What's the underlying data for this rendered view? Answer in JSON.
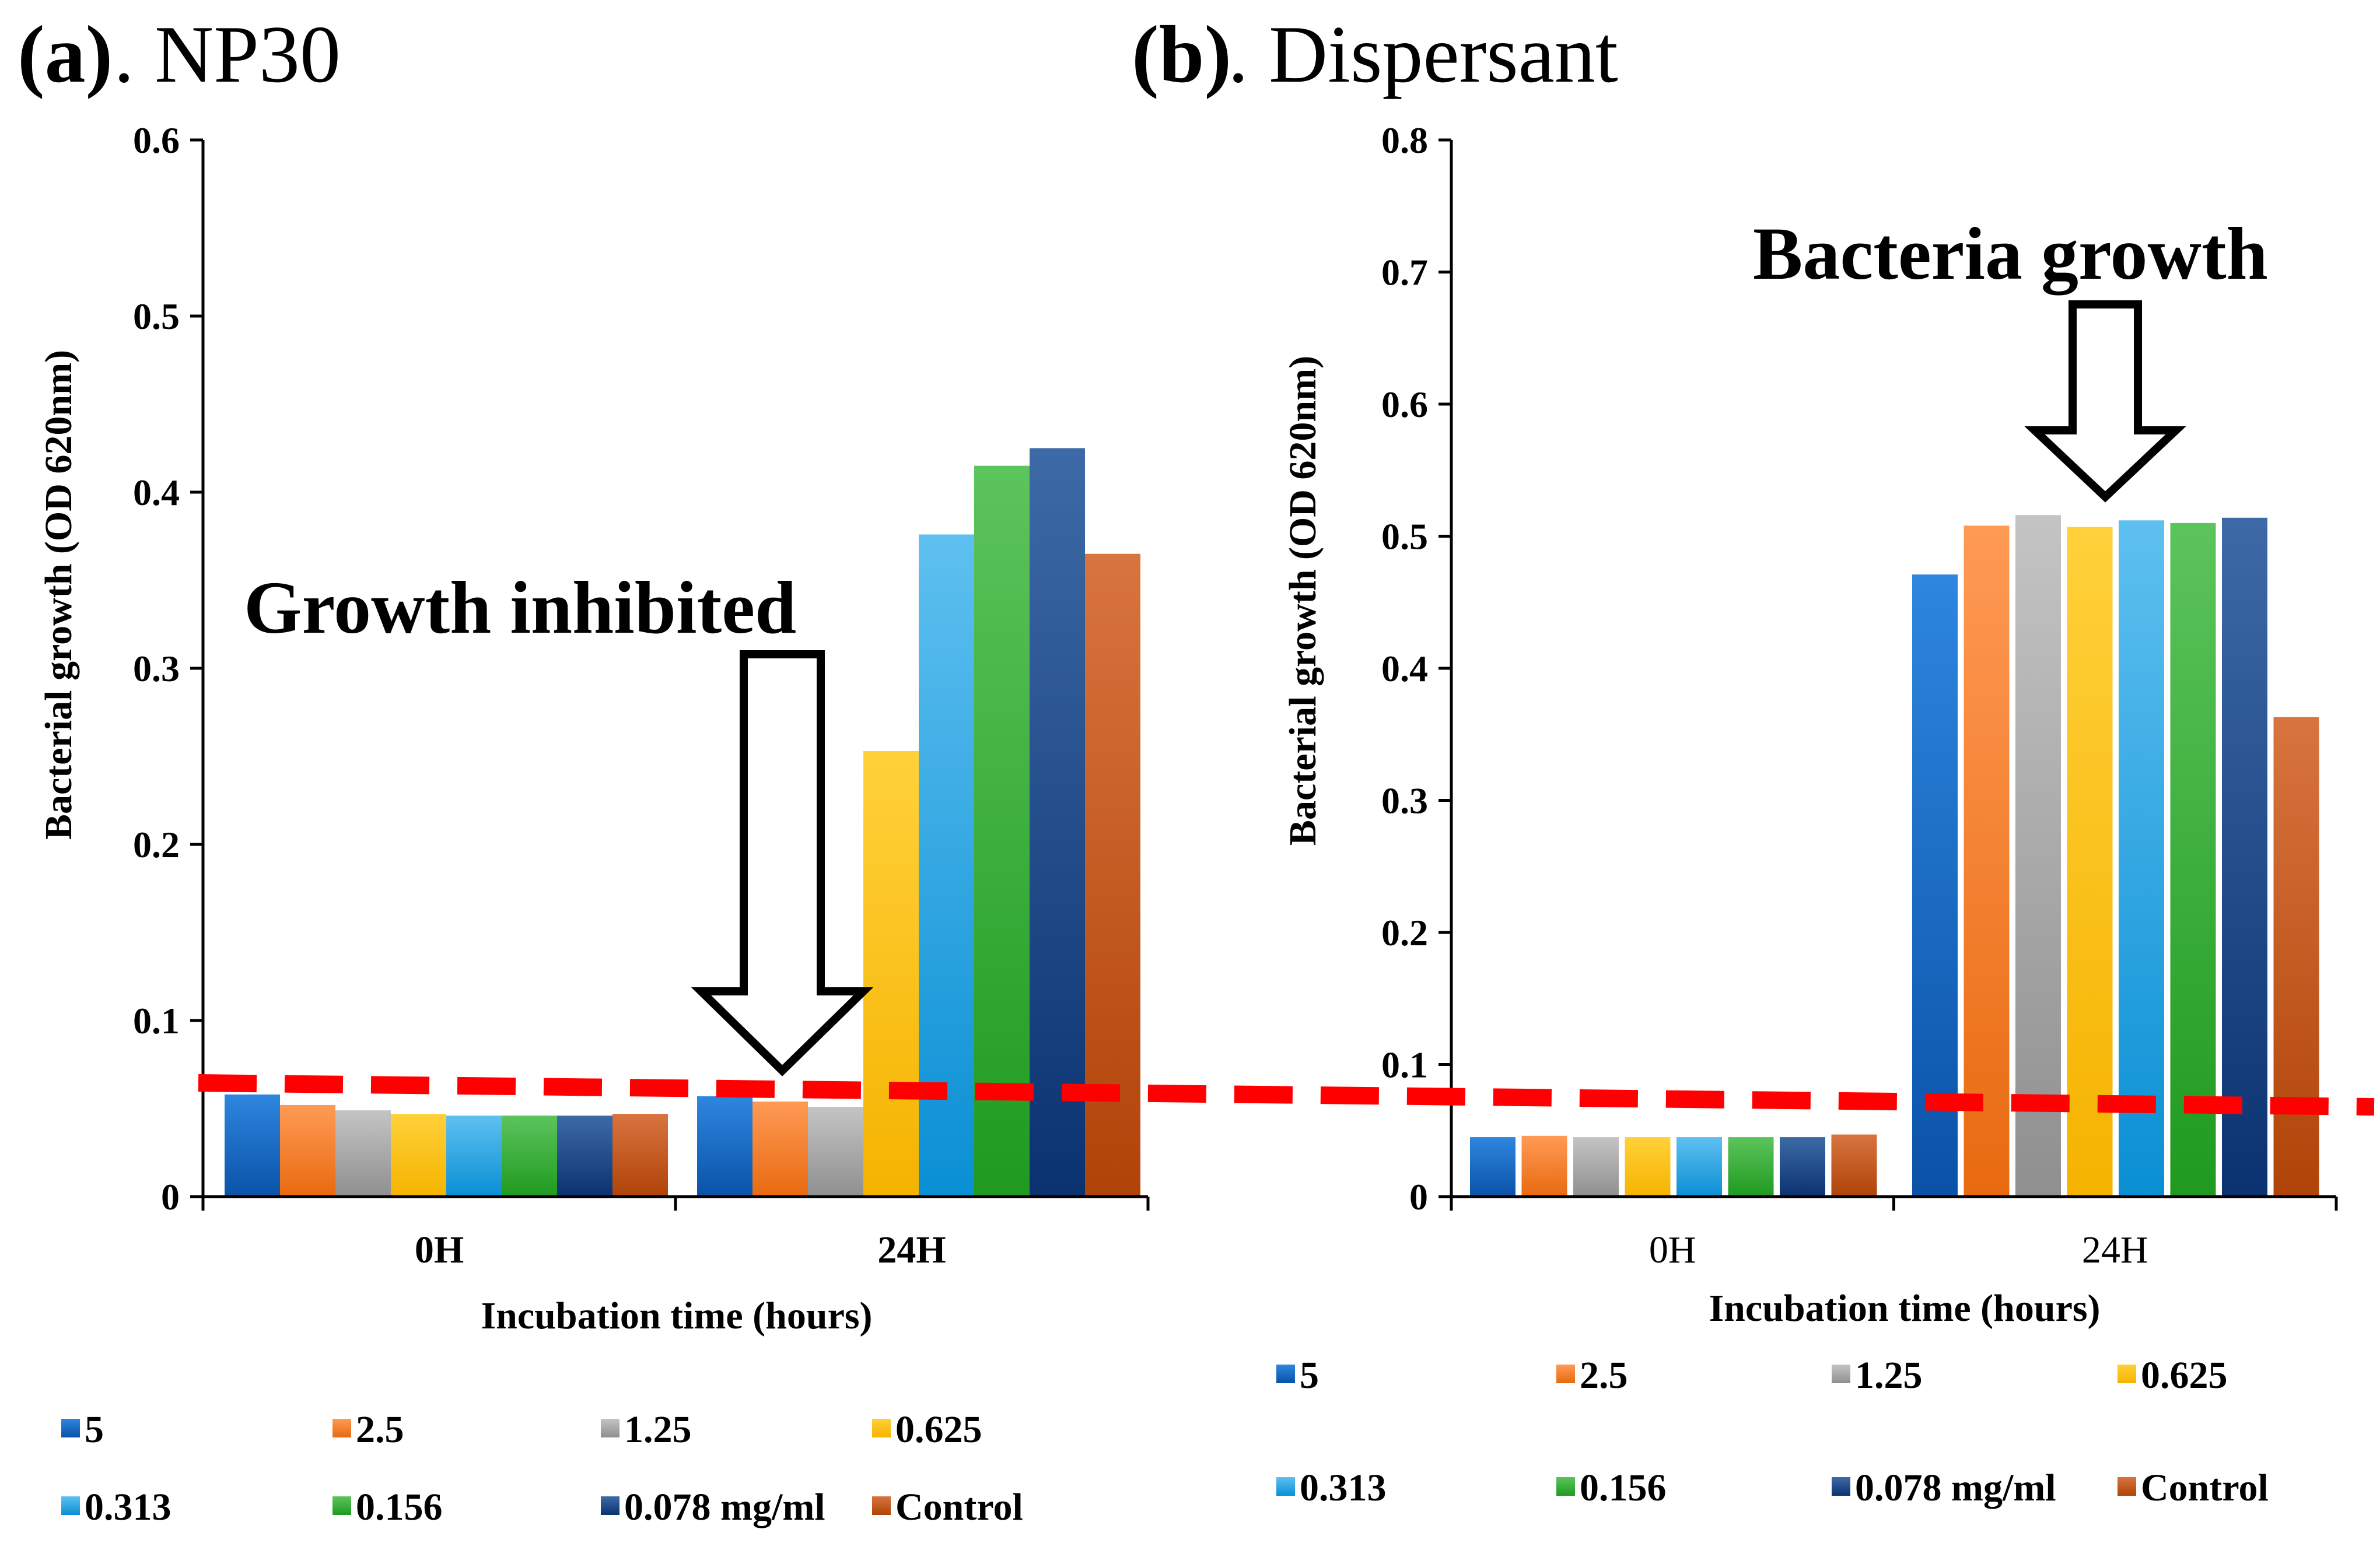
{
  "chart_data": [
    {
      "panel_id": "a",
      "panel_label": "(a)",
      "panel_name": ". NP30",
      "type": "bar",
      "ylabel": "Bacterial growth (OD 620nm)",
      "xlabel": "Incubation time (hours)",
      "categories": [
        "0H",
        "24H"
      ],
      "ylim": [
        0,
        0.6
      ],
      "yticks": [
        "0",
        "0.1",
        "0.2",
        "0.3",
        "0.4",
        "0.5",
        "0.6"
      ],
      "annotation": "Growth inhibited",
      "threshold_line": 0.06,
      "series": [
        {
          "name": "5",
          "values": [
            0.058,
            0.057
          ]
        },
        {
          "name": "2.5",
          "values": [
            0.052,
            0.054
          ]
        },
        {
          "name": "1.25",
          "values": [
            0.049,
            0.051
          ]
        },
        {
          "name": "0.625",
          "values": [
            0.047,
            0.253
          ]
        },
        {
          "name": "0.313",
          "values": [
            0.046,
            0.376
          ]
        },
        {
          "name": "0.156",
          "values": [
            0.046,
            0.415
          ]
        },
        {
          "name": "0.078 mg/ml",
          "values": [
            0.046,
            0.425
          ]
        },
        {
          "name": "Control",
          "values": [
            0.047,
            0.365
          ]
        }
      ]
    },
    {
      "panel_id": "b",
      "panel_label": "(b)",
      "panel_name": ". Dispersant",
      "type": "bar",
      "ylabel": "Bacterial growth (OD 620nm)",
      "xlabel": "Incubation time (hours)",
      "categories": [
        "0H",
        "24H"
      ],
      "ylim": [
        0,
        0.8
      ],
      "yticks": [
        "0",
        "0.1",
        "0.2",
        "0.3",
        "0.4",
        "0.5",
        "0.6",
        "0.7",
        "0.8"
      ],
      "annotation": "Bacteria growth",
      "threshold_line": 0.072,
      "series": [
        {
          "name": "5",
          "values": [
            0.045,
            0.471
          ]
        },
        {
          "name": "2.5",
          "values": [
            0.046,
            0.508
          ]
        },
        {
          "name": "1.25",
          "values": [
            0.045,
            0.516
          ]
        },
        {
          "name": "0.625",
          "values": [
            0.045,
            0.507
          ]
        },
        {
          "name": "0.313",
          "values": [
            0.045,
            0.512
          ]
        },
        {
          "name": "0.156",
          "values": [
            0.045,
            0.51
          ]
        },
        {
          "name": "0.078 mg/ml",
          "values": [
            0.045,
            0.514
          ]
        },
        {
          "name": "Control",
          "values": [
            0.047,
            0.363
          ]
        }
      ]
    }
  ],
  "series_colors": {
    "5": [
      "#2e86de",
      "#0a52a8"
    ],
    "2.5": [
      "#ff9a55",
      "#e86a10"
    ],
    "1.25": [
      "#c4c4c4",
      "#8f8f8f"
    ],
    "0.625": [
      "#ffd13a",
      "#f5b300"
    ],
    "0.313": [
      "#5ec0f0",
      "#0a8fd4"
    ],
    "0.156": [
      "#5cc45c",
      "#1f9a1f"
    ],
    "0.078 mg/ml": [
      "#3d6aa6",
      "#0b3270"
    ],
    "Control": [
      "#d8743f",
      "#b04308"
    ]
  },
  "threshold_color": "#ff0000"
}
